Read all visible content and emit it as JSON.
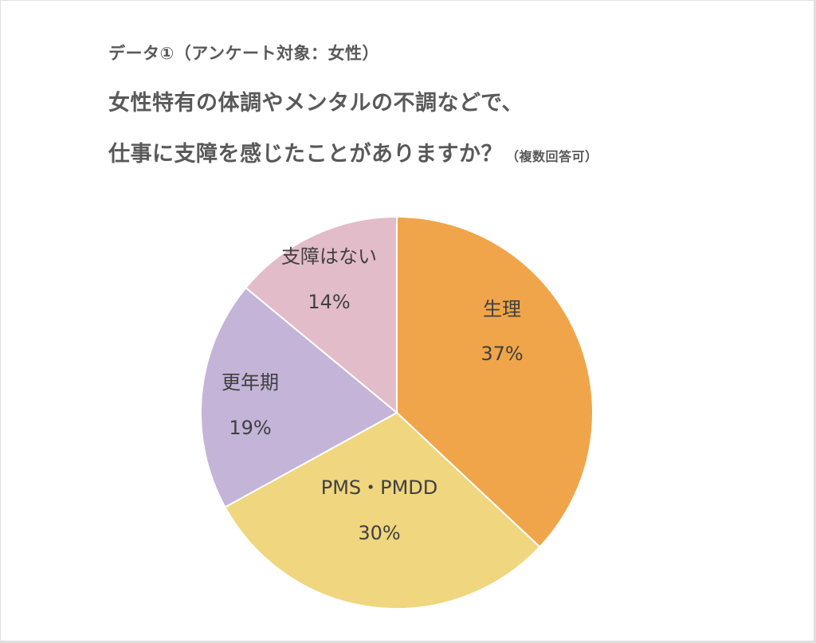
{
  "header": {
    "subtitle": "データ①（アンケート対象：女性）",
    "title_line1": "女性特有の体調やメンタルの不調などで、",
    "title_line2": "仕事に支障を感じたことがありますか？",
    "title_note": "（複数回答可）"
  },
  "slices": [
    {
      "label": "生理",
      "pct_text": "37%",
      "color": "#F0A54A"
    },
    {
      "label": "PMS・PMDD",
      "pct_text": "30%",
      "color": "#EFD67F"
    },
    {
      "label": "更年期",
      "pct_text": "19%",
      "color": "#C3B4D8"
    },
    {
      "label": "支障はない",
      "pct_text": "14%",
      "color": "#E2BCC8"
    }
  ],
  "chart_data": {
    "type": "pie",
    "title": "女性特有の体調やメンタルの不調などで、仕事に支障を感じたことがありますか？（複数回答可）",
    "subtitle": "データ①（アンケート対象：女性）",
    "categories": [
      "生理",
      "PMS・PMDD",
      "更年期",
      "支障はない"
    ],
    "values": [
      37,
      30,
      19,
      14
    ],
    "unit": "%",
    "colors": [
      "#F0A54A",
      "#EFD67F",
      "#C3B4D8",
      "#E2BCC8"
    ],
    "start_angle": "12 o'clock, clockwise",
    "legend": "none (data labels inside slices)"
  }
}
